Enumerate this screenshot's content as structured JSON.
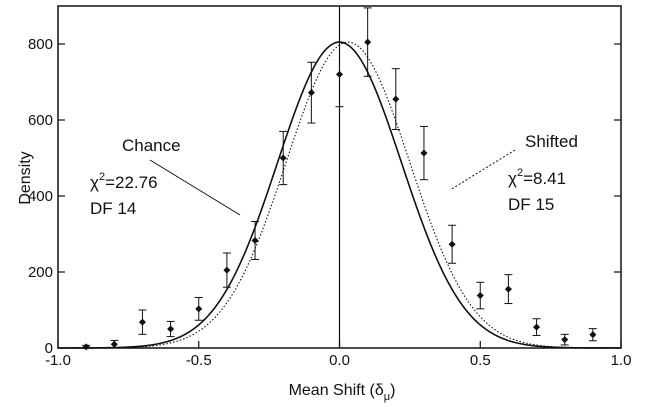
{
  "chart_data": {
    "type": "scatter",
    "xlabel": "Mean Shift (δ",
    "xlabel_sub": "μ",
    "xlabel_close": ")",
    "ylabel": "Density",
    "xlim": [
      -1.0,
      1.0
    ],
    "ylim": [
      0,
      900
    ],
    "x_ticks": [
      {
        "value": -1.0,
        "label": "-1.0"
      },
      {
        "value": -0.5,
        "label": "-0.5"
      },
      {
        "value": 0.0,
        "label": "0.0"
      },
      {
        "value": 0.5,
        "label": "0.5"
      },
      {
        "value": 1.0,
        "label": "1.0"
      }
    ],
    "y_ticks": [
      {
        "value": 0,
        "label": "0"
      },
      {
        "value": 200,
        "label": "200"
      },
      {
        "value": 400,
        "label": "400"
      },
      {
        "value": 600,
        "label": "600"
      },
      {
        "value": 800,
        "label": "800"
      }
    ],
    "grid": false,
    "vertical_line_at": 0.0,
    "series": [
      {
        "style": "solid",
        "curve": "gaussian",
        "mean": 0.0,
        "peak": 805,
        "sigma": 0.22
      },
      {
        "style": "dotted",
        "curve": "gaussian",
        "mean": 0.03,
        "peak": 805,
        "sigma": 0.22
      }
    ],
    "points": [
      {
        "x": -0.9,
        "y": 3,
        "err": 4
      },
      {
        "x": -0.8,
        "y": 10,
        "err": 10
      },
      {
        "x": -0.7,
        "y": 68,
        "err": 32
      },
      {
        "x": -0.6,
        "y": 50,
        "err": 20
      },
      {
        "x": -0.5,
        "y": 103,
        "err": 30
      },
      {
        "x": -0.4,
        "y": 205,
        "err": 45
      },
      {
        "x": -0.3,
        "y": 283,
        "err": 50
      },
      {
        "x": -0.2,
        "y": 500,
        "err": 70
      },
      {
        "x": -0.1,
        "y": 672,
        "err": 80
      },
      {
        "x": 0.0,
        "y": 720,
        "err": 85
      },
      {
        "x": 0.1,
        "y": 805,
        "err": 90
      },
      {
        "x": 0.2,
        "y": 655,
        "err": 80
      },
      {
        "x": 0.3,
        "y": 513,
        "err": 70
      },
      {
        "x": 0.4,
        "y": 273,
        "err": 50
      },
      {
        "x": 0.5,
        "y": 138,
        "err": 35
      },
      {
        "x": 0.6,
        "y": 155,
        "err": 38
      },
      {
        "x": 0.7,
        "y": 55,
        "err": 22
      },
      {
        "x": 0.8,
        "y": 22,
        "err": 14
      },
      {
        "x": 0.9,
        "y": 35,
        "err": 16
      }
    ],
    "annotations": {
      "chance": {
        "label": "Chance",
        "chi_prefix": "χ",
        "chi_sup": "2",
        "chi_value": "=22.76",
        "df": "DF 14"
      },
      "shifted": {
        "label": "Shifted",
        "chi_prefix": "χ",
        "chi_sup": "2",
        "chi_value": "=8.41",
        "df": "DF 15"
      }
    }
  }
}
